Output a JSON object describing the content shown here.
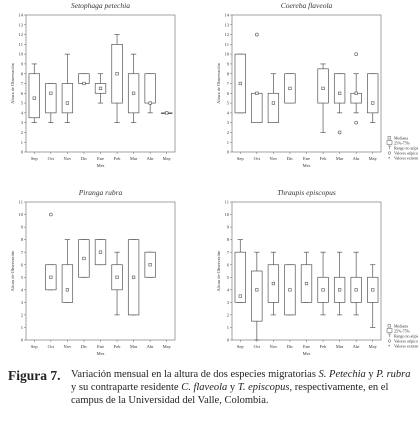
{
  "months": [
    "Sep",
    "Oct",
    "Nov",
    "Dic",
    "Ene",
    "Feb",
    "Mar",
    "Abr",
    "May"
  ],
  "xlabel": "Mes",
  "ylabel": "Altura de Observación",
  "legend": {
    "median": "Mediana",
    "box": "25%-75%",
    "range": "Rango no atípico",
    "outlier": "Valores atípicos",
    "extreme": "Valores extremos"
  },
  "chart_data": [
    {
      "type": "box",
      "title": "Setophaga petechia",
      "ylim": [
        0,
        14
      ],
      "yticks": [
        0,
        1,
        2,
        3,
        4,
        5,
        6,
        7,
        8,
        9,
        10,
        11,
        12,
        13,
        14
      ],
      "boxes": [
        {
          "x": "Sep",
          "min": 3,
          "q1": 3.5,
          "median": 5.5,
          "q3": 8,
          "max": 9,
          "outliers": []
        },
        {
          "x": "Oct",
          "min": 3,
          "q1": 4,
          "median": 6,
          "q3": 7,
          "max": 7,
          "outliers": []
        },
        {
          "x": "Nov",
          "min": 3,
          "q1": 4,
          "median": 5,
          "q3": 7,
          "max": 10,
          "outliers": []
        },
        {
          "x": "Dic",
          "min": 7,
          "q1": 7,
          "median": 7,
          "q3": 8,
          "max": 8,
          "outliers": []
        },
        {
          "x": "Ene",
          "min": 5,
          "q1": 6,
          "median": 6.5,
          "q3": 7,
          "max": 8,
          "outliers": []
        },
        {
          "x": "Feb",
          "min": 3,
          "q1": 5,
          "median": 8,
          "q3": 11,
          "max": 12,
          "outliers": []
        },
        {
          "x": "Mar",
          "min": 3,
          "q1": 4,
          "median": 6,
          "q3": 8,
          "max": 10,
          "outliers": []
        },
        {
          "x": "Abr",
          "min": 4,
          "q1": 5,
          "median": 5,
          "q3": 8,
          "max": 8,
          "outliers": []
        },
        {
          "x": "May",
          "min": 4,
          "q1": 4,
          "median": 4,
          "q3": 4,
          "max": 4,
          "outliers": []
        }
      ]
    },
    {
      "type": "box",
      "title": "Coereba flaveola",
      "ylim": [
        0,
        14
      ],
      "yticks": [
        0,
        1,
        2,
        3,
        4,
        5,
        6,
        7,
        8,
        9,
        10,
        11,
        12,
        13,
        14
      ],
      "boxes": [
        {
          "x": "Sep",
          "min": 4,
          "q1": 4,
          "median": 7,
          "q3": 10,
          "max": 10,
          "outliers": []
        },
        {
          "x": "Oct",
          "min": 3,
          "q1": 3,
          "median": 6,
          "q3": 6,
          "max": 6,
          "outliers": [
            12
          ]
        },
        {
          "x": "Nov",
          "min": 3,
          "q1": 3,
          "median": 5,
          "q3": 6,
          "max": 8,
          "outliers": []
        },
        {
          "x": "Dic",
          "min": 5,
          "q1": 5,
          "median": 6.5,
          "q3": 8,
          "max": 8,
          "outliers": []
        },
        {
          "x": "Ene",
          "min": null,
          "q1": null,
          "median": null,
          "q3": null,
          "max": null,
          "outliers": []
        },
        {
          "x": "Feb",
          "min": 2,
          "q1": 5,
          "median": 6.5,
          "q3": 8.5,
          "max": 9,
          "outliers": []
        },
        {
          "x": "Mar",
          "min": 4,
          "q1": 5,
          "median": 6,
          "q3": 8,
          "max": 8,
          "outliers": [
            2
          ]
        },
        {
          "x": "Abr",
          "min": 4,
          "q1": 5,
          "median": 6,
          "q3": 6,
          "max": 8,
          "outliers": [
            3,
            10
          ]
        },
        {
          "x": "May",
          "min": 3,
          "q1": 4,
          "median": 5,
          "q3": 8,
          "max": 8,
          "outliers": []
        }
      ]
    },
    {
      "type": "box",
      "title": "Piranga rubra",
      "ylim": [
        0,
        11
      ],
      "yticks": [
        0,
        1,
        2,
        3,
        4,
        5,
        6,
        7,
        8,
        9,
        10,
        11
      ],
      "boxes": [
        {
          "x": "Sep",
          "min": null,
          "q1": null,
          "median": null,
          "q3": null,
          "max": null,
          "outliers": []
        },
        {
          "x": "Oct",
          "min": 4,
          "q1": 4,
          "median": 5,
          "q3": 6,
          "max": 6,
          "outliers": [
            10
          ]
        },
        {
          "x": "Nov",
          "min": 3,
          "q1": 3,
          "median": 4,
          "q3": 6,
          "max": 8,
          "outliers": []
        },
        {
          "x": "Dic",
          "min": 5,
          "q1": 5,
          "median": 6.5,
          "q3": 8,
          "max": 8,
          "outliers": []
        },
        {
          "x": "Ene",
          "min": 6,
          "q1": 6,
          "median": 7,
          "q3": 8,
          "max": 8,
          "outliers": []
        },
        {
          "x": "Feb",
          "min": 2,
          "q1": 4,
          "median": 5,
          "q3": 6,
          "max": 7,
          "outliers": []
        },
        {
          "x": "Mar",
          "min": 2,
          "q1": 2,
          "median": 5,
          "q3": 8,
          "max": 8,
          "outliers": []
        },
        {
          "x": "Abr",
          "min": 5,
          "q1": 5,
          "median": 6,
          "q3": 7,
          "max": 7,
          "outliers": []
        },
        {
          "x": "May",
          "min": null,
          "q1": null,
          "median": null,
          "q3": null,
          "max": null,
          "outliers": []
        }
      ]
    },
    {
      "type": "box",
      "title": "Thraupis episcopus",
      "ylim": [
        0,
        11
      ],
      "yticks": [
        0,
        1,
        2,
        3,
        4,
        5,
        6,
        7,
        8,
        9,
        10,
        11
      ],
      "boxes": [
        {
          "x": "Sep",
          "min": 3,
          "q1": 3,
          "median": 3.5,
          "q3": 7,
          "max": 8,
          "outliers": []
        },
        {
          "x": "Oct",
          "min": 0,
          "q1": 1.5,
          "median": 4,
          "q3": 5.5,
          "max": 7,
          "outliers": []
        },
        {
          "x": "Nov",
          "min": 2,
          "q1": 3,
          "median": 4.5,
          "q3": 6,
          "max": 7,
          "outliers": []
        },
        {
          "x": "Dic",
          "min": 2,
          "q1": 2,
          "median": 4,
          "q3": 6,
          "max": 6,
          "outliers": []
        },
        {
          "x": "Ene",
          "min": 3,
          "q1": 3,
          "median": 4.5,
          "q3": 6,
          "max": 7,
          "outliers": []
        },
        {
          "x": "Feb",
          "min": 2,
          "q1": 3,
          "median": 4,
          "q3": 5,
          "max": 7,
          "outliers": []
        },
        {
          "x": "Mar",
          "min": 2,
          "q1": 3,
          "median": 4,
          "q3": 5,
          "max": 7,
          "outliers": []
        },
        {
          "x": "Abr",
          "min": 2,
          "q1": 3,
          "median": 4,
          "q3": 5,
          "max": 7,
          "outliers": []
        },
        {
          "x": "May",
          "min": 1,
          "q1": 3,
          "median": 4,
          "q3": 5,
          "max": 6,
          "outliers": []
        }
      ]
    }
  ],
  "caption": {
    "label": "Figura 7.",
    "t1": "Variación mensual en la altura de dos especies migratorias ",
    "sp1": "S. Petechia",
    "t2": " y ",
    "sp2": "P. rubra",
    "t3": " y su contraparte residente ",
    "sp3": "C. flaveola",
    "t4": " y ",
    "sp4": "T. episcopus",
    "t5": ", respectivamente, en el campus de la Universidad del Valle, Colombia."
  }
}
